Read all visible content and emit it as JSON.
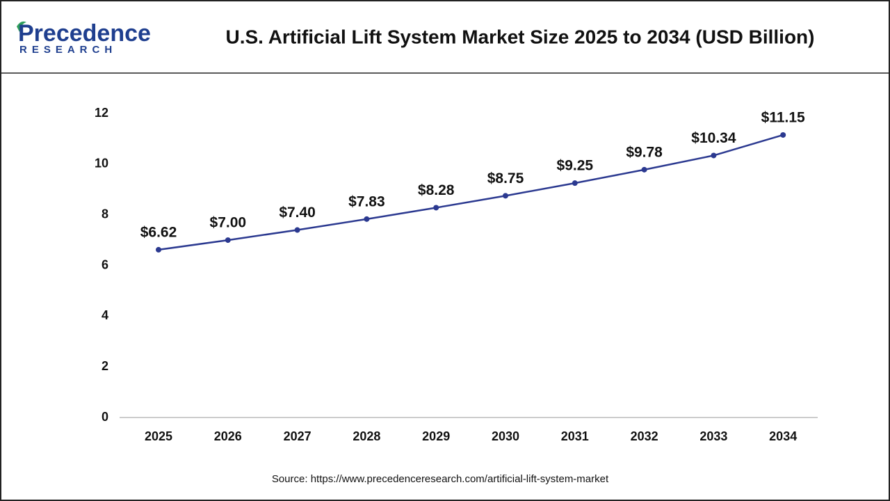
{
  "logo": {
    "name": "Precedence",
    "tagline": "RESEARCH"
  },
  "chart_data": {
    "type": "line",
    "title": "U.S. Artificial Lift System Market Size 2025 to 2034 (USD Billion)",
    "categories": [
      "2025",
      "2026",
      "2027",
      "2028",
      "2029",
      "2030",
      "2031",
      "2032",
      "2033",
      "2034"
    ],
    "values": [
      6.62,
      7.0,
      7.4,
      7.83,
      8.28,
      8.75,
      9.25,
      9.78,
      10.34,
      11.15
    ],
    "value_labels": [
      "$6.62",
      "$7.00",
      "$7.40",
      "$7.83",
      "$8.28",
      "$8.75",
      "$9.25",
      "$9.78",
      "$10.34",
      "$11.15"
    ],
    "color": "#2b3990",
    "ylim": [
      0,
      12
    ],
    "yticks": [
      0,
      2,
      4,
      6,
      8,
      10,
      12
    ],
    "grid": false,
    "source": "Source: https://www.precedenceresearch.com/artificial-lift-system-market"
  }
}
